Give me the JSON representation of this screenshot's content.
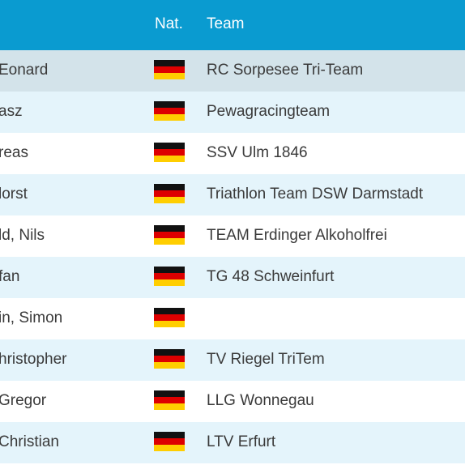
{
  "header": {
    "nat_label": "Nat.",
    "team_label": "Team",
    "bg_color": "#0a9bd0"
  },
  "colors": {
    "row_highlight": "#d3e3ea",
    "row_alt": "#e4f4fb",
    "row_plain": "#ffffff",
    "flag_black": "#111111",
    "flag_red": "#dd0000",
    "flag_gold": "#ffce00"
  },
  "rows": [
    {
      "name": "Eonard",
      "nat": "germany-flag-icon",
      "team": "RC Sorpesee Tri-Team"
    },
    {
      "name": "asz",
      "nat": "germany-flag-icon",
      "team": "Pewagracingteam"
    },
    {
      "name": "reas",
      "nat": "germany-flag-icon",
      "team": "SSV Ulm 1846"
    },
    {
      "name": "lorst",
      "nat": "germany-flag-icon",
      "team": "Triathlon Team DSW Darmstadt"
    },
    {
      "name": "ld, Nils",
      "nat": "germany-flag-icon",
      "team": "TEAM Erdinger Alkoholfrei"
    },
    {
      "name": "fan",
      "nat": "germany-flag-icon",
      "team": "TG 48 Schweinfurt"
    },
    {
      "name": "in, Simon",
      "nat": "germany-flag-icon",
      "team": ""
    },
    {
      "name": "hristopher",
      "nat": "germany-flag-icon",
      "team": "TV Riegel TriTem"
    },
    {
      "name": " Gregor",
      "nat": "germany-flag-icon",
      "team": "LLG Wonnegau"
    },
    {
      "name": "Christian",
      "nat": "germany-flag-icon",
      "team": "LTV Erfurt"
    }
  ]
}
